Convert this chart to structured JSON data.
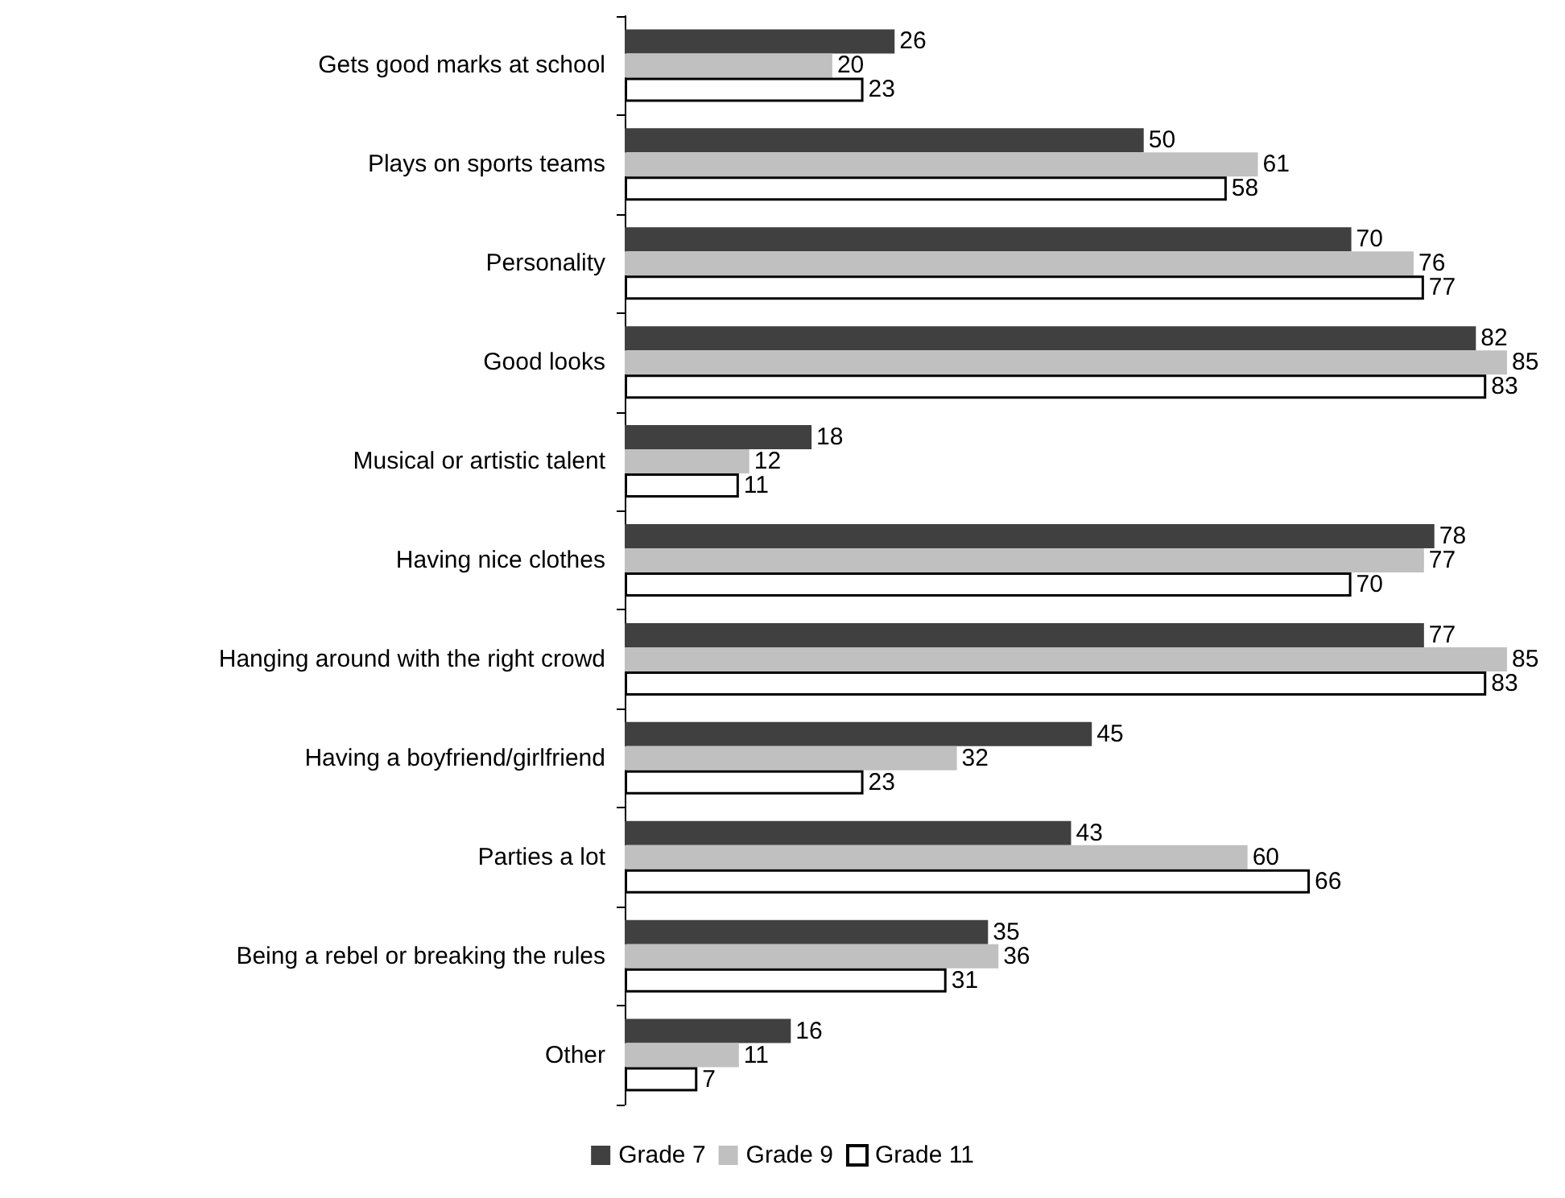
{
  "chart_data": {
    "type": "bar",
    "orientation": "horizontal",
    "data_labels": true,
    "legend": "bottom",
    "categories": [
      "Gets good marks at school",
      "Plays on sports teams",
      "Personality",
      "Good looks",
      "Musical or artistic talent",
      "Having nice clothes",
      "Hanging around with the right crowd",
      "Having a boyfriend/girlfriend",
      "Parties a lot",
      "Being a rebel or breaking the rules",
      "Other"
    ],
    "series": [
      {
        "name": "Grade 7",
        "color": "#404040",
        "values": [
          26,
          50,
          70,
          82,
          18,
          78,
          77,
          45,
          43,
          35,
          16
        ]
      },
      {
        "name": "Grade 9",
        "color": "#c0c0c0",
        "values": [
          20,
          61,
          76,
          85,
          12,
          77,
          85,
          32,
          60,
          36,
          11
        ]
      },
      {
        "name": "Grade 11",
        "color": "#ffffff",
        "values": [
          23,
          58,
          77,
          83,
          11,
          70,
          83,
          23,
          66,
          31,
          7
        ]
      }
    ]
  }
}
